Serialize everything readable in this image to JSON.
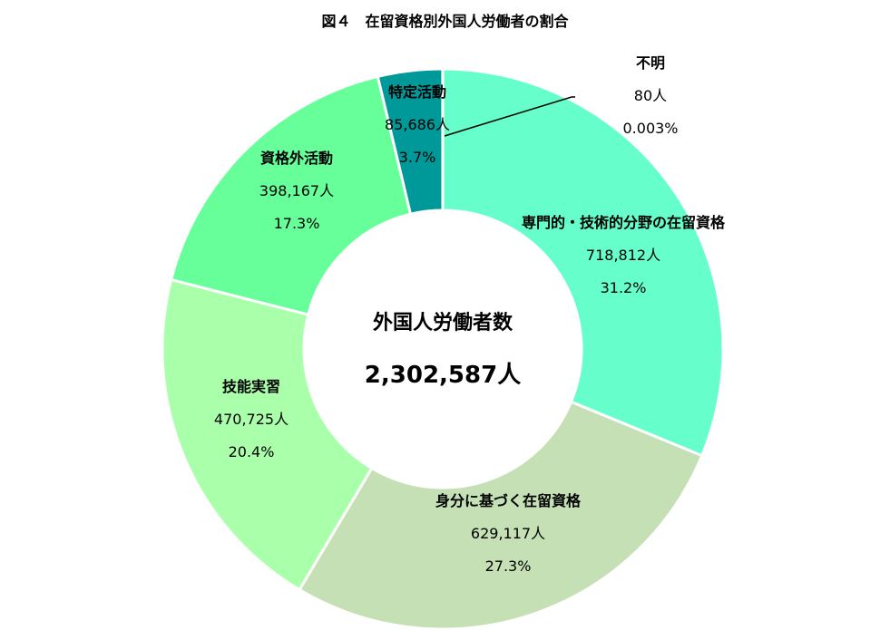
{
  "chart_data": {
    "type": "pie",
    "donut": true,
    "title": "図４　在留資格別外国人労働者の割合",
    "center_label": "外国人労働者数",
    "center_value": "2,302,587人",
    "start": "top",
    "direction": "clockwise",
    "slices": [
      {
        "name": "専門的・技術的分野の在留資格",
        "value": 718812,
        "value_label": "718,812人",
        "percent_label": "31.2%",
        "color": "#66FFCC"
      },
      {
        "name": "身分に基づく在留資格",
        "value": 629117,
        "value_label": "629,117人",
        "percent_label": "27.3%",
        "color": "#C5E0B4"
      },
      {
        "name": "技能実習",
        "value": 470725,
        "value_label": "470,725人",
        "percent_label": "20.4%",
        "color": "#AAFFAA"
      },
      {
        "name": "資格外活動",
        "value": 398167,
        "value_label": "398,167人",
        "percent_label": "17.3%",
        "color": "#66FF99"
      },
      {
        "name": "特定活動",
        "value": 85686,
        "value_label": "85,686人",
        "percent_label": "3.7%",
        "color": "#009999"
      },
      {
        "name": "不明",
        "value": 80,
        "value_label": "80人",
        "percent_label": "0.003%",
        "color": "#66FFCC"
      }
    ]
  }
}
